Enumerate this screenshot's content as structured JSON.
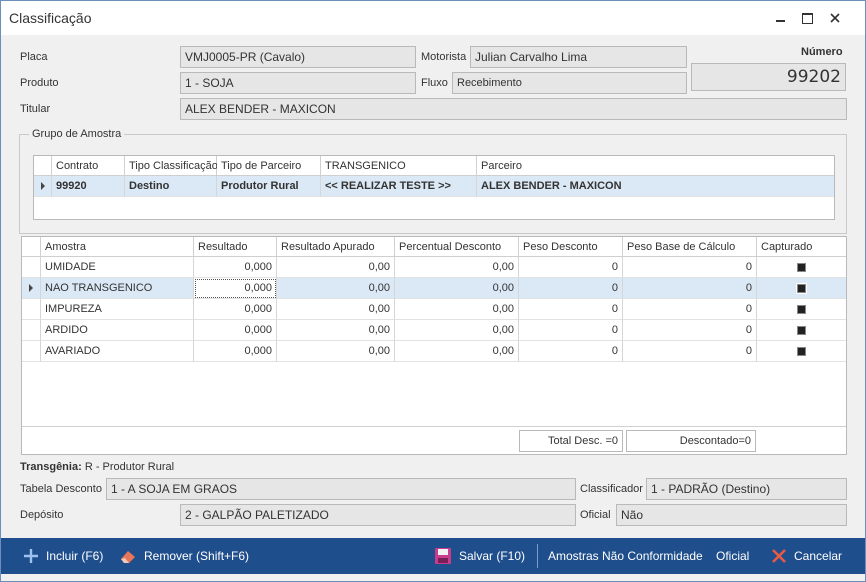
{
  "window": {
    "title": "Classificação"
  },
  "header": {
    "placa_label": "Placa",
    "placa_value": "VMJ0005-PR (Cavalo)",
    "produto_label": "Produto",
    "produto_value": "1 - SOJA",
    "titular_label": "Titular",
    "titular_value": "ALEX BENDER - MAXICON",
    "motorista_label": "Motorista",
    "motorista_value": "Julian Carvalho Lima",
    "fluxo_label": "Fluxo",
    "fluxo_value": "Recebimento",
    "numero_label": "Número",
    "numero_value": "99202"
  },
  "grupo_amostra": {
    "title": "Grupo de Amostra",
    "columns": [
      "Contrato",
      "Tipo Classificação",
      "Tipo de Parceiro",
      "TRANSGENICO",
      "Parceiro"
    ],
    "rows": [
      [
        "99920",
        "Destino",
        "Produtor Rural",
        "<< REALIZAR TESTE >>",
        "ALEX BENDER - MAXICON"
      ]
    ]
  },
  "amostras": {
    "columns": [
      "Amostra",
      "Resultado",
      "Resultado Apurado",
      "Percentual Desconto",
      "Peso Desconto",
      "Peso Base de Cálculo",
      "Capturado"
    ],
    "rows": [
      {
        "amostra": "UMIDADE",
        "resultado": "0,000",
        "apurado": "0,00",
        "percentual": "0,00",
        "peso": "0",
        "base": "0",
        "capturado": true
      },
      {
        "amostra": "NAO TRANSGENICO",
        "resultado": "0,000",
        "apurado": "0,00",
        "percentual": "0,00",
        "peso": "0",
        "base": "0",
        "capturado": true
      },
      {
        "amostra": "IMPUREZA",
        "resultado": "0,000",
        "apurado": "0,00",
        "percentual": "0,00",
        "peso": "0",
        "base": "0",
        "capturado": true
      },
      {
        "amostra": "ARDIDO",
        "resultado": "0,000",
        "apurado": "0,00",
        "percentual": "0,00",
        "peso": "0",
        "base": "0",
        "capturado": true
      },
      {
        "amostra": "AVARIADO",
        "resultado": "0,000",
        "apurado": "0,00",
        "percentual": "0,00",
        "peso": "0",
        "base": "0",
        "capturado": true
      }
    ],
    "selected_row": 1,
    "total_desc": "Total Desc. =0",
    "descontado": "Descontado=0"
  },
  "info": {
    "transgenia_label": "Transgênia:",
    "transgenia_value": "R - Produtor Rural",
    "tabela_label": "Tabela Desconto",
    "tabela_value": "1 - A SOJA EM GRAOS",
    "classificador_label": "Classificador",
    "classificador_value": "1 - PADRÃO (Destino)",
    "deposito_label": "Depósito",
    "deposito_value": "2 - GALPÃO PALETIZADO",
    "oficial_label": "Oficial",
    "oficial_value": "Não"
  },
  "footer": {
    "incluir": "Incluir (F6)",
    "remover": "Remover (Shift+F6)",
    "salvar": "Salvar (F10)",
    "amostras_nc": "Amostras Não Conformidade",
    "oficial": "Oficial",
    "cancelar": "Cancelar"
  },
  "colors": {
    "footer_bg": "#1f4e8c",
    "selected_row": "#dbe8f5"
  },
  "icons": [
    "minimize-icon",
    "maximize-icon",
    "close-icon",
    "plus-icon",
    "eraser-icon",
    "floppy-icon",
    "x-icon",
    "row-pointer-icon"
  ]
}
